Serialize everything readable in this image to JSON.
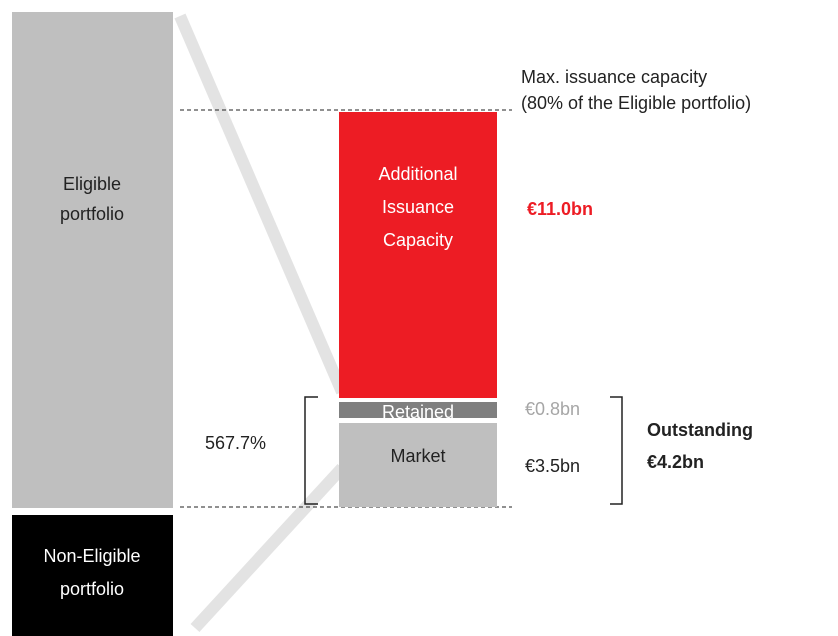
{
  "eligible": {
    "lines": [
      "Eligible",
      "portfolio"
    ]
  },
  "non_eligible": {
    "lines": [
      "Non-Eligible",
      "portfolio"
    ]
  },
  "max_capacity": {
    "lines": [
      "Max. issuance capacity",
      "(80% of the Eligible portfolio)"
    ]
  },
  "additional": {
    "lines": [
      "Additional",
      "Issuance",
      "Capacity"
    ],
    "amount": "€11.0bn"
  },
  "retained": {
    "label": "Retained",
    "amount": "€0.8bn"
  },
  "market": {
    "label": "Market",
    "amount": "€3.5bn"
  },
  "outstanding": {
    "lines": [
      "Outstanding",
      "€4.2bn"
    ]
  },
  "ratio": "567.7%"
}
